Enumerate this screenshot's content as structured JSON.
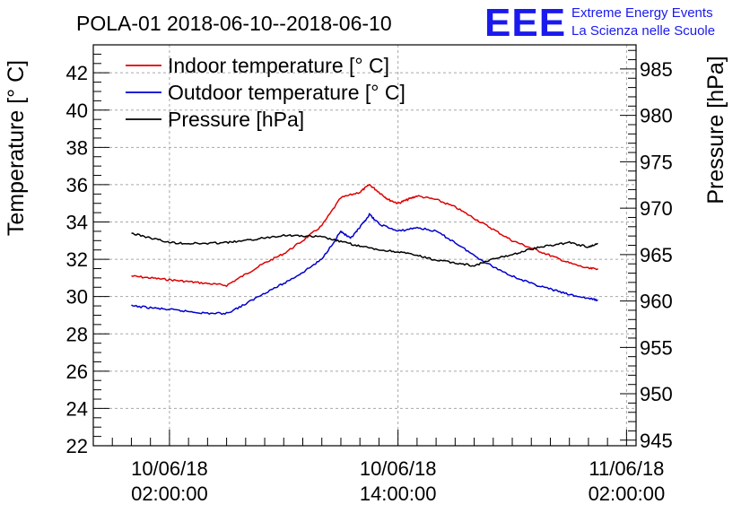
{
  "chart_data": {
    "type": "line",
    "title": "POLA-01 2018-06-10--2018-06-10",
    "logo": {
      "mark": "EEE",
      "line1": "Extreme Energy Events",
      "line2": "La Scienza nelle Scuole"
    },
    "ylabel_left": "Temperature [° C]",
    "ylabel_right": "Pressure [hPa]",
    "xlim_hours": [
      -2.0,
      26.5
    ],
    "ylim_left": [
      22,
      43.5
    ],
    "ylim_right": [
      944.4,
      987.6
    ],
    "x_ticks": [
      {
        "hour": 2,
        "line1": "10/06/18",
        "line2": "02:00:00"
      },
      {
        "hour": 14,
        "line1": "10/06/18",
        "line2": "14:00:00"
      },
      {
        "hour": 26,
        "line1": "11/06/18",
        "line2": "02:00:00"
      }
    ],
    "left_ticks": [
      "22",
      "24",
      "26",
      "28",
      "30",
      "32",
      "34",
      "36",
      "38",
      "40",
      "42"
    ],
    "right_ticks": [
      "945",
      "950",
      "955",
      "960",
      "965",
      "970",
      "975",
      "980",
      "985"
    ],
    "legend": [
      {
        "label": "Indoor temperature [° C]",
        "color": "#e00000"
      },
      {
        "label": "Outdoor temperature [° C]",
        "color": "#0000cc"
      },
      {
        "label": "Pressure [hPa]",
        "color": "#000000"
      }
    ],
    "series": [
      {
        "name": "Indoor temperature [° C]",
        "axis": "left",
        "color": "#e00000",
        "points": [
          [
            0,
            31.1
          ],
          [
            1,
            31.0
          ],
          [
            2,
            30.9
          ],
          [
            3,
            30.8
          ],
          [
            4,
            30.7
          ],
          [
            5,
            30.6
          ],
          [
            6,
            31.2
          ],
          [
            7,
            31.8
          ],
          [
            8,
            32.3
          ],
          [
            9,
            33.0
          ],
          [
            10,
            33.8
          ],
          [
            11,
            35.3
          ],
          [
            12,
            35.6
          ],
          [
            12.5,
            36.0
          ],
          [
            13,
            35.6
          ],
          [
            13.5,
            35.2
          ],
          [
            14,
            35.0
          ],
          [
            14.5,
            35.2
          ],
          [
            15,
            35.4
          ],
          [
            16,
            35.2
          ],
          [
            17,
            34.8
          ],
          [
            18,
            34.2
          ],
          [
            19,
            33.6
          ],
          [
            20,
            33.0
          ],
          [
            21,
            32.6
          ],
          [
            22,
            32.2
          ],
          [
            23,
            31.8
          ],
          [
            24,
            31.5
          ],
          [
            24.5,
            31.5
          ]
        ]
      },
      {
        "name": "Outdoor temperature [° C]",
        "axis": "left",
        "color": "#0000cc",
        "points": [
          [
            0,
            29.5
          ],
          [
            1,
            29.4
          ],
          [
            2,
            29.3
          ],
          [
            3,
            29.2
          ],
          [
            4,
            29.1
          ],
          [
            5,
            29.1
          ],
          [
            6,
            29.6
          ],
          [
            7,
            30.2
          ],
          [
            8,
            30.7
          ],
          [
            9,
            31.3
          ],
          [
            10,
            32.0
          ],
          [
            11,
            33.5
          ],
          [
            11.5,
            33.1
          ],
          [
            12,
            33.7
          ],
          [
            12.5,
            34.4
          ],
          [
            13,
            33.9
          ],
          [
            14,
            33.5
          ],
          [
            15,
            33.7
          ],
          [
            16,
            33.5
          ],
          [
            17,
            32.9
          ],
          [
            18,
            32.2
          ],
          [
            19,
            31.6
          ],
          [
            20,
            31.1
          ],
          [
            21,
            30.7
          ],
          [
            22,
            30.4
          ],
          [
            23,
            30.1
          ],
          [
            24,
            29.9
          ],
          [
            24.5,
            29.8
          ]
        ]
      },
      {
        "name": "Pressure [hPa]",
        "axis": "right",
        "color": "#000000",
        "points": [
          [
            0,
            967.3
          ],
          [
            1,
            966.8
          ],
          [
            2,
            966.3
          ],
          [
            3,
            966.2
          ],
          [
            4,
            966.2
          ],
          [
            5,
            966.3
          ],
          [
            6,
            966.5
          ],
          [
            7,
            966.8
          ],
          [
            8,
            967.1
          ],
          [
            9,
            967.0
          ],
          [
            10,
            966.9
          ],
          [
            11,
            966.4
          ],
          [
            12,
            965.9
          ],
          [
            13,
            965.5
          ],
          [
            14,
            965.3
          ],
          [
            15,
            964.9
          ],
          [
            16,
            964.4
          ],
          [
            17,
            964.1
          ],
          [
            18,
            963.8
          ],
          [
            19,
            964.5
          ],
          [
            20,
            965.0
          ],
          [
            21,
            965.6
          ],
          [
            22,
            966.0
          ],
          [
            23,
            966.3
          ],
          [
            24,
            965.8
          ],
          [
            24.5,
            966.2
          ]
        ]
      }
    ]
  }
}
